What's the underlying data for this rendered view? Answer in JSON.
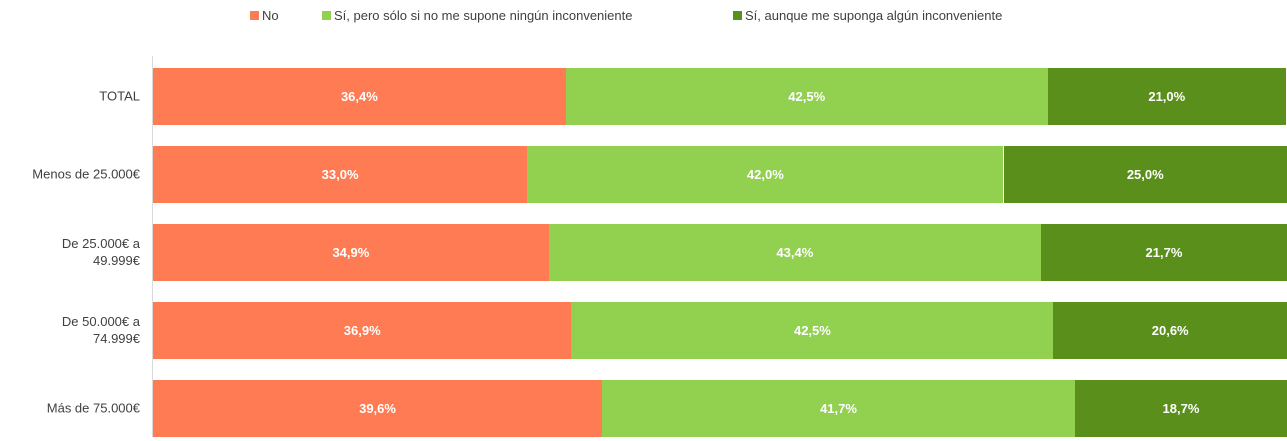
{
  "chart_data": {
    "type": "stacked-bar-horizontal",
    "categories": [
      "TOTAL",
      "Menos de 25.000€",
      "De 25.000€ a 49.999€",
      "De 50.000€ a 74.999€",
      "Más de 75.000€"
    ],
    "series": [
      {
        "name": "No",
        "color": "#ff7b54",
        "values": [
          36.4,
          33.0,
          34.9,
          36.9,
          39.6
        ],
        "value_labels": [
          "36,4%",
          "33,0%",
          "34,9%",
          "36,9%",
          "39,6%"
        ]
      },
      {
        "name": "Sí, pero sólo si no me supone ningún inconveniente",
        "color": "#92d050",
        "values": [
          42.5,
          42.0,
          43.4,
          42.5,
          41.7
        ],
        "value_labels": [
          "42,5%",
          "42,0%",
          "43,4%",
          "42,5%",
          "41,7%"
        ]
      },
      {
        "name": "Sí, aunque me suponga algún inconveniente",
        "color": "#5a8f1b",
        "values": [
          21.0,
          25.0,
          21.7,
          20.6,
          18.7
        ],
        "value_labels": [
          "21,0%",
          "25,0%",
          "21,7%",
          "20,6%",
          "18,7%"
        ]
      }
    ],
    "xlim": [
      0,
      100
    ],
    "legend": "top"
  }
}
